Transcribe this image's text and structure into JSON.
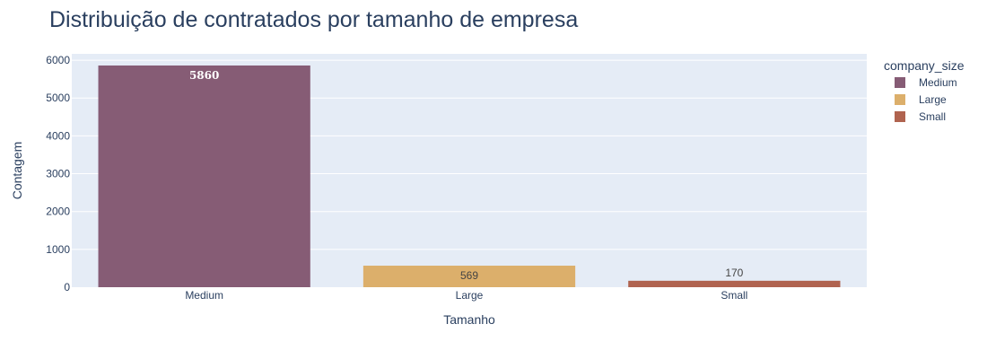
{
  "chart_data": {
    "type": "bar",
    "title": "Distribuição de contratados por tamanho de empresa",
    "xlabel": "Tamanho",
    "ylabel": "Contagem",
    "categories": [
      "Medium",
      "Large",
      "Small"
    ],
    "values": [
      5860,
      569,
      170
    ],
    "value_labels": [
      "5860",
      "569",
      "170"
    ],
    "colors": [
      "#865c75",
      "#dcaf6b",
      "#b0634f"
    ],
    "ylim": [
      0,
      6168
    ],
    "y_ticks": [
      0,
      1000,
      2000,
      3000,
      4000,
      5000,
      6000
    ],
    "y_tick_labels": [
      "0",
      "1000",
      "2000",
      "3000",
      "4000",
      "5000",
      "6000"
    ],
    "grid": true,
    "plot_background": "#e5ecf6",
    "legend": {
      "title": "company_size",
      "placement": "right",
      "entries": [
        "Medium",
        "Large",
        "Small"
      ]
    }
  }
}
